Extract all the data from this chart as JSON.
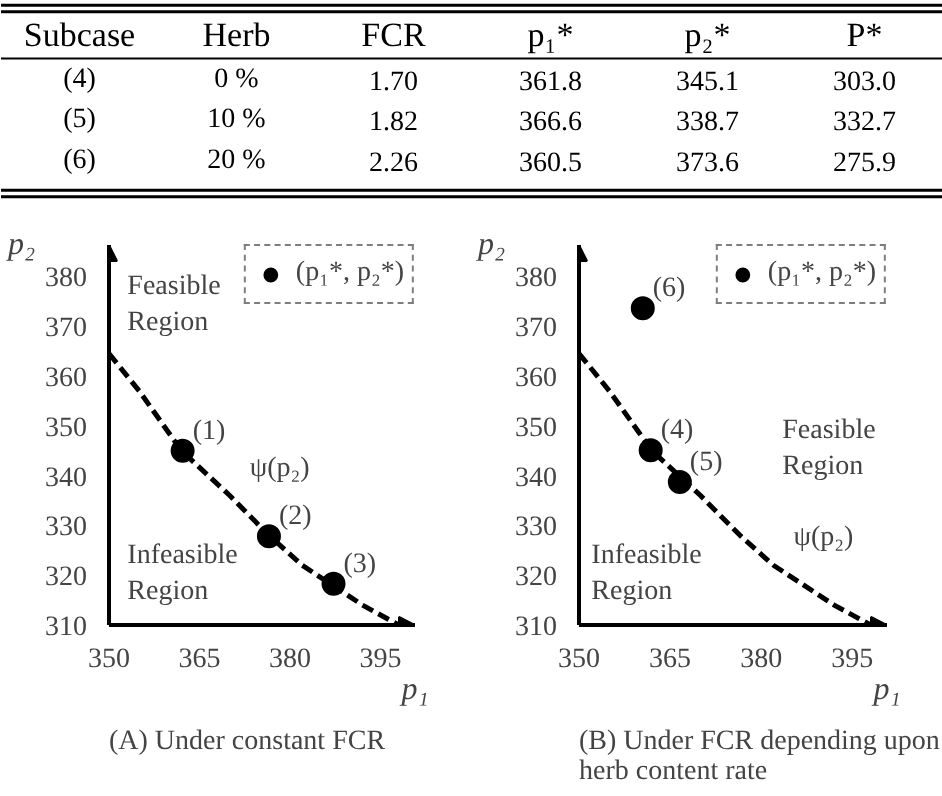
{
  "chart_data": [
    {
      "type": "other",
      "categories": [
        "Subcase",
        "Herb",
        "FCR",
        "p₁*",
        "p₂*",
        "P*"
      ],
      "annotations": [
        "(4)",
        "0 %",
        "1.70",
        "361.8",
        "345.1",
        "303.0",
        "(5)",
        "10 %",
        "1.82",
        "366.6",
        "338.7",
        "332.7",
        "(6)",
        "20 %",
        "2.26",
        "360.5",
        "373.6",
        "275.9"
      ]
    },
    {
      "type": "scatter",
      "title": "(A) Under constant FCR",
      "xlabel": "p₁",
      "ylabel": "p₂",
      "xlim": [
        350,
        400.7
      ],
      "ylim": [
        310,
        386.3
      ],
      "xticks": [
        350,
        365,
        380,
        395
      ],
      "yticks": [
        310,
        320,
        330,
        340,
        350,
        360,
        370,
        380
      ],
      "grid": false,
      "legend": "top right",
      "marker": "circle",
      "series": [
        {
          "name": "(p₁*, p₂*)",
          "type": "scatter",
          "color": "#000000",
          "x": [
            362.2,
            376.5,
            387.2
          ],
          "values": [
            345.0,
            327.8,
            318.3
          ]
        },
        {
          "type": "line",
          "marker": "none",
          "line_style": "dashed",
          "color": "#000000",
          "x": [
            350,
            355,
            362,
            370,
            376.5,
            382,
            387,
            392,
            398
          ],
          "values": [
            364.5,
            357,
            345,
            336,
            328,
            322,
            318,
            314,
            310
          ]
        }
      ],
      "annotations": [
        "Feasible\nRegion",
        "Infeasible\nRegion",
        {
          "text": "ψ(p₂)",
          "x": 370,
          "y": 336
        },
        {
          "text": "(1)",
          "x": 362.2,
          "y": 345.0
        },
        {
          "text": "(2)",
          "x": 376.5,
          "y": 327.8
        },
        {
          "text": "(3)",
          "x": 387.2,
          "y": 318.3
        }
      ]
    },
    {
      "type": "scatter",
      "title": "(B) Under FCR depending upon\nherb content rate",
      "xlabel": "p₁",
      "ylabel": "p₂",
      "xlim": [
        350,
        400.7
      ],
      "ylim": [
        310,
        386.3
      ],
      "xticks": [
        350,
        365,
        380,
        395
      ],
      "yticks": [
        310,
        320,
        330,
        340,
        350,
        360,
        370,
        380
      ],
      "grid": false,
      "legend": "top right",
      "marker": "circle",
      "series": [
        {
          "name": "(p₁*, p₂*)",
          "type": "scatter",
          "color": "#000000",
          "x": [
            361.8,
            366.6,
            360.5
          ],
          "values": [
            345.1,
            338.7,
            373.6
          ]
        },
        {
          "type": "line",
          "marker": "none",
          "line_style": "dashed",
          "color": "#000000",
          "x": [
            350,
            355,
            362,
            370,
            376.5,
            382,
            387,
            392,
            398
          ],
          "values": [
            364.5,
            357,
            345,
            336,
            328,
            322,
            318,
            314,
            310
          ]
        }
      ],
      "annotations": [
        "Feasible\nRegion",
        "Infeasible\nRegion",
        {
          "text": "ψ(p₂)",
          "x": 382,
          "y": 322
        },
        {
          "text": "(4)",
          "x": 361.8,
          "y": 345.1
        },
        {
          "text": "(5)",
          "x": 366.6,
          "y": 338.7
        },
        {
          "text": "(6)",
          "x": 360.5,
          "y": 373.6
        }
      ]
    }
  ]
}
